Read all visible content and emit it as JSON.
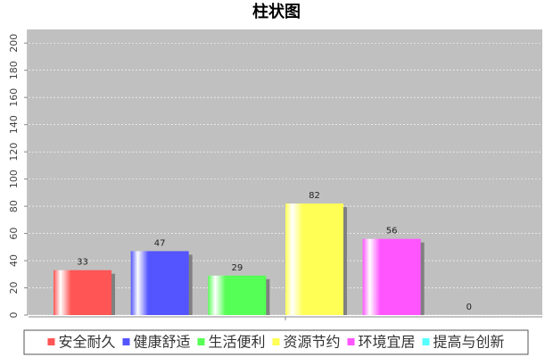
{
  "chart_data": {
    "type": "bar",
    "title": "柱状图",
    "categories": [
      null
    ],
    "series": [
      {
        "name": "安全耐久",
        "color": "#ff5555",
        "values": [
          33
        ]
      },
      {
        "name": "健康舒适",
        "color": "#5555ff",
        "values": [
          47
        ]
      },
      {
        "name": "生活便利",
        "color": "#55ff55",
        "values": [
          29
        ]
      },
      {
        "name": "资源节约",
        "color": "#ffff55",
        "values": [
          82
        ]
      },
      {
        "name": "环境宜居",
        "color": "#ff55ff",
        "values": [
          56
        ]
      },
      {
        "name": "提高与创新",
        "color": "#55ffff",
        "values": [
          0
        ]
      }
    ],
    "ylim": [
      0,
      210
    ],
    "yticks": [
      0,
      20,
      40,
      60,
      80,
      100,
      120,
      140,
      160,
      180,
      200
    ],
    "grid": true
  }
}
